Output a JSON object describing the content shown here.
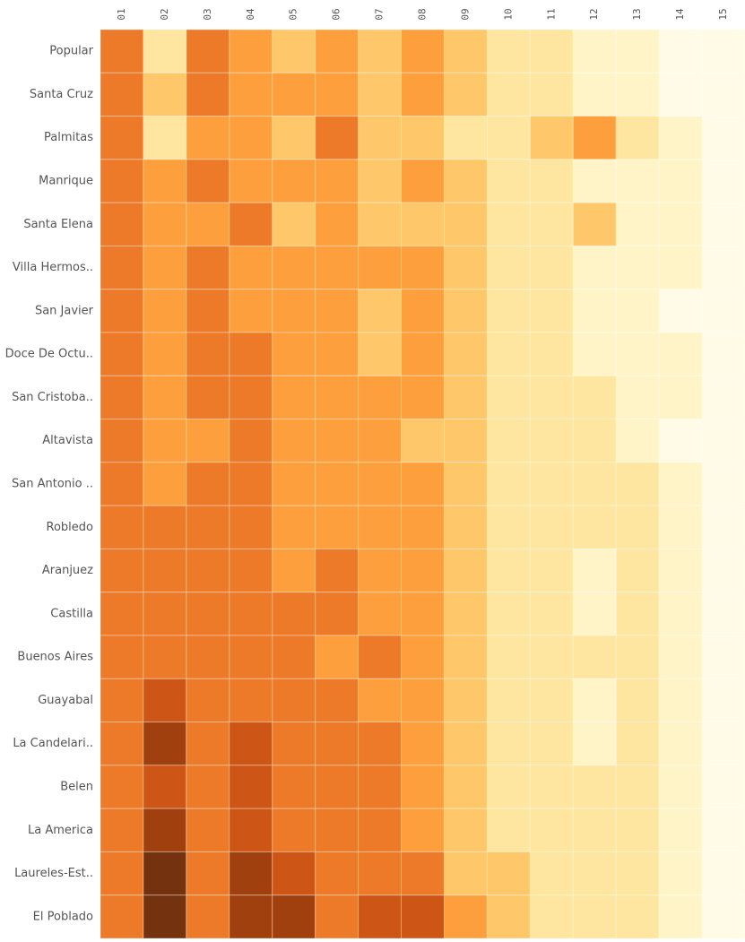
{
  "chart_data": {
    "type": "heatmap",
    "columns": [
      "01",
      "02",
      "03",
      "04",
      "05",
      "06",
      "07",
      "08",
      "09",
      "10",
      "11",
      "12",
      "13",
      "14",
      "15"
    ],
    "rows": [
      "Popular",
      "Santa Cruz",
      "Palmitas",
      "Manrique",
      "Santa Elena",
      "Villa Hermos..",
      "San Javier",
      "Doce De Octu..",
      "San Cristoba..",
      "Altavista",
      "San Antonio ..",
      "Robledo",
      "Aranjuez",
      "Castilla",
      "Buenos Aires",
      "Guayabal",
      "La Candelari..",
      "Belen",
      "La America",
      "Laureles-Est..",
      "El Poblado"
    ],
    "colors": [
      "#fffbe6",
      "#fff4c8",
      "#fee6a0",
      "#fec76a",
      "#fd9f3c",
      "#ec7a28",
      "#cd5516",
      "#a1400f",
      "#74320f"
    ],
    "values": [
      [
        6,
        3,
        6,
        5,
        4,
        5,
        4,
        5,
        4,
        3,
        3,
        2,
        2,
        1,
        1
      ],
      [
        6,
        4,
        6,
        5,
        5,
        5,
        4,
        5,
        4,
        3,
        3,
        2,
        2,
        1,
        1
      ],
      [
        6,
        3,
        5,
        5,
        4,
        6,
        4,
        4,
        3,
        3,
        4,
        5,
        3,
        2,
        1
      ],
      [
        6,
        5,
        6,
        5,
        5,
        5,
        4,
        5,
        4,
        3,
        3,
        2,
        2,
        2,
        1
      ],
      [
        6,
        5,
        5,
        6,
        4,
        5,
        4,
        4,
        4,
        3,
        3,
        4,
        2,
        2,
        1
      ],
      [
        6,
        5,
        6,
        5,
        5,
        5,
        5,
        5,
        4,
        3,
        3,
        2,
        2,
        2,
        1
      ],
      [
        6,
        5,
        6,
        5,
        5,
        5,
        4,
        5,
        4,
        3,
        3,
        2,
        2,
        1,
        1
      ],
      [
        6,
        5,
        6,
        6,
        5,
        5,
        4,
        5,
        4,
        3,
        3,
        2,
        2,
        2,
        1
      ],
      [
        6,
        5,
        6,
        6,
        5,
        5,
        5,
        5,
        4,
        3,
        3,
        3,
        2,
        2,
        1
      ],
      [
        6,
        5,
        5,
        6,
        5,
        5,
        5,
        4,
        4,
        3,
        3,
        3,
        2,
        1,
        1
      ],
      [
        6,
        5,
        6,
        6,
        5,
        5,
        5,
        5,
        4,
        3,
        3,
        3,
        3,
        2,
        1
      ],
      [
        6,
        6,
        6,
        6,
        5,
        5,
        5,
        5,
        4,
        3,
        3,
        3,
        3,
        2,
        1
      ],
      [
        6,
        6,
        6,
        6,
        5,
        6,
        5,
        5,
        4,
        3,
        3,
        2,
        3,
        2,
        1
      ],
      [
        6,
        6,
        6,
        6,
        6,
        6,
        5,
        5,
        4,
        3,
        3,
        2,
        3,
        2,
        1
      ],
      [
        6,
        6,
        6,
        6,
        6,
        5,
        6,
        5,
        4,
        3,
        3,
        3,
        3,
        2,
        1
      ],
      [
        6,
        7,
        6,
        6,
        6,
        6,
        5,
        5,
        4,
        3,
        3,
        2,
        3,
        2,
        1
      ],
      [
        6,
        8,
        6,
        7,
        6,
        6,
        6,
        5,
        4,
        3,
        3,
        2,
        3,
        2,
        1
      ],
      [
        6,
        7,
        6,
        7,
        6,
        6,
        6,
        5,
        4,
        3,
        3,
        3,
        3,
        2,
        1
      ],
      [
        6,
        8,
        6,
        7,
        6,
        6,
        6,
        5,
        4,
        3,
        3,
        3,
        3,
        2,
        1
      ],
      [
        6,
        9,
        6,
        8,
        7,
        6,
        6,
        6,
        4,
        4,
        3,
        3,
        3,
        2,
        1
      ],
      [
        6,
        9,
        6,
        8,
        8,
        6,
        7,
        7,
        5,
        4,
        3,
        3,
        3,
        2,
        1
      ]
    ]
  }
}
